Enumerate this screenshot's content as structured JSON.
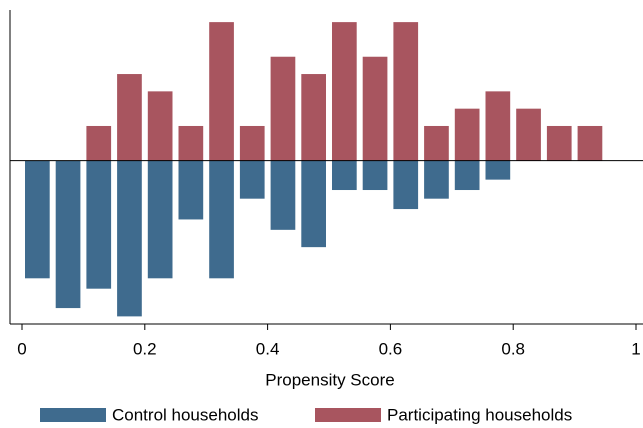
{
  "chart_data": {
    "type": "mirrored-histogram",
    "x_label": "Propensity Score",
    "xlim": [
      0,
      1
    ],
    "xticks": [
      0,
      0.2,
      0.4,
      0.6,
      0.8,
      1
    ],
    "ylim": [
      -4.72,
      4.35
    ],
    "series": [
      {
        "name": "Control households",
        "color": "#3f6b8e",
        "bins": [
          0,
          0.05,
          0.1,
          0.15,
          0.2,
          0.25,
          0.3,
          0.35,
          0.4,
          0.45,
          0.5,
          0.55,
          0.6,
          0.65,
          0.7,
          0.75,
          0.8
        ],
        "values": [
          -3.4,
          -4.26,
          -3.7,
          -4.5,
          -3.4,
          -1.7,
          -3.4,
          -1.1,
          -2,
          -2.5,
          -0.85,
          -0.85,
          -1.4,
          -1.1,
          -0.85,
          -0.55
        ]
      },
      {
        "name": "Participating households",
        "color": "#a8555f",
        "bins": [
          0.1,
          0.15,
          0.2,
          0.25,
          0.3,
          0.35,
          0.4,
          0.45,
          0.5,
          0.55,
          0.6,
          0.65,
          0.7,
          0.75,
          0.8,
          0.85,
          0.9,
          0.95
        ],
        "values": [
          1,
          2.5,
          2,
          1,
          4,
          1,
          3,
          2.5,
          4,
          3,
          4,
          1,
          1.5,
          2,
          1.5,
          1,
          1
        ]
      }
    ]
  }
}
